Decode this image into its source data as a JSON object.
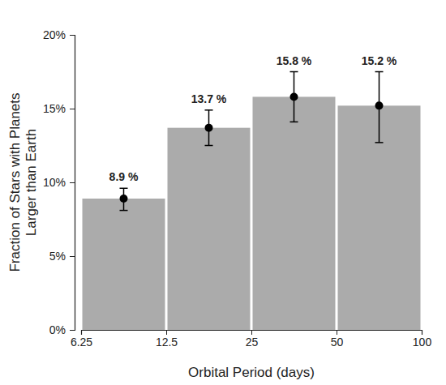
{
  "chart_data": {
    "type": "histogram",
    "xlabel": "Orbital Period (days)",
    "ylabel": [
      "Fraction of Stars with Planets",
      "Larger than Earth"
    ],
    "bins": [
      6.25,
      12.5,
      25,
      50,
      100
    ],
    "values": [
      8.9,
      13.7,
      15.8,
      15.2
    ],
    "value_labels": [
      "8.9 %",
      "13.7 %",
      "15.8 %",
      "15.2 %"
    ],
    "error_minus": [
      0.8,
      1.2,
      1.7,
      2.5
    ],
    "error_plus": [
      0.7,
      1.2,
      1.7,
      2.3
    ],
    "color": "#ababab",
    "log": "x",
    "xlim": [
      6.25,
      100
    ],
    "xticks": [
      6.25,
      12.5,
      25,
      50,
      100
    ],
    "ylim": [
      0,
      20
    ],
    "yticks": [
      {
        "value": 0,
        "label": "0%"
      },
      {
        "value": 5,
        "label": "5%"
      },
      {
        "value": 10,
        "label": "10%"
      },
      {
        "value": 15,
        "label": "15%"
      },
      {
        "value": 20,
        "label": "20%"
      }
    ],
    "grid": false,
    "data_labels": true
  }
}
